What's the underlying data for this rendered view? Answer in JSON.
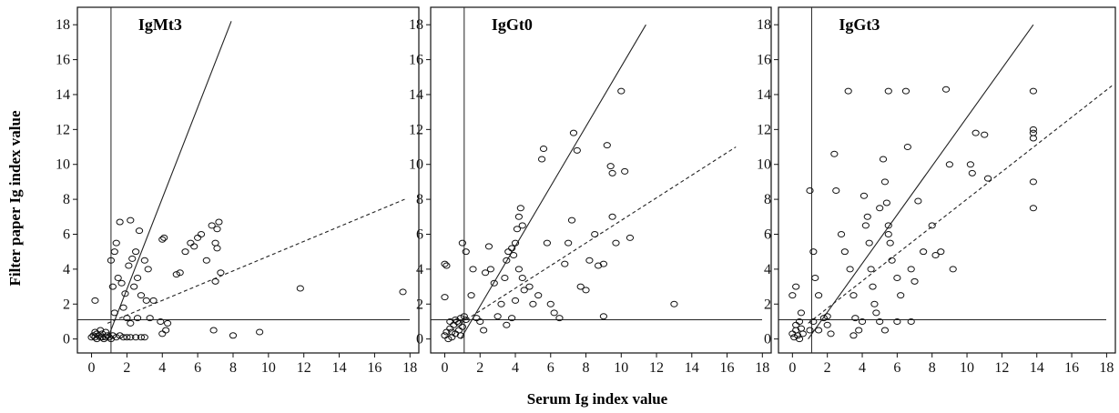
{
  "axis_titles": {
    "x": "Serum Ig index value",
    "y": "Filter paper Ig index value"
  },
  "chart_data": [
    {
      "type": "scatter",
      "title": "IgMt3",
      "xlim": [
        -0.8,
        18.5
      ],
      "ylim": [
        -0.8,
        19
      ],
      "xticks": [
        0,
        2,
        4,
        6,
        8,
        10,
        12,
        14,
        16,
        18
      ],
      "yticks": [
        0,
        2,
        4,
        6,
        8,
        10,
        12,
        14,
        16,
        18
      ],
      "cutoff_x": 1.1,
      "cutoff_y": 1.1,
      "fit_solid": [
        [
          0.9,
          0
        ],
        [
          7.9,
          18.2
        ]
      ],
      "fit_dashed": [
        [
          0.9,
          0.9
        ],
        [
          17.7,
          8
        ]
      ],
      "points": [
        [
          0,
          0.1
        ],
        [
          0.1,
          0.2
        ],
        [
          0.2,
          0.1
        ],
        [
          0.3,
          0
        ],
        [
          0.4,
          0.2
        ],
        [
          0.5,
          0.1
        ],
        [
          0.6,
          0.3
        ],
        [
          0.7,
          0
        ],
        [
          0.8,
          0.1
        ],
        [
          0.9,
          0.2
        ],
        [
          1,
          0.1
        ],
        [
          1.1,
          0
        ],
        [
          0.2,
          0.4
        ],
        [
          0.5,
          0.5
        ],
        [
          0.3,
          0.3
        ],
        [
          0.6,
          0.1
        ],
        [
          0.8,
          0.4
        ],
        [
          1.2,
          0.2
        ],
        [
          1.4,
          0.1
        ],
        [
          1.6,
          0.2
        ],
        [
          1.8,
          0.1
        ],
        [
          2,
          0.1
        ],
        [
          2.2,
          0.1
        ],
        [
          2.5,
          0.1
        ],
        [
          2.8,
          0.1
        ],
        [
          3,
          0.1
        ],
        [
          0.2,
          2.2
        ],
        [
          1.1,
          4.5
        ],
        [
          1.3,
          5
        ],
        [
          1.4,
          5.5
        ],
        [
          1.6,
          6.7
        ],
        [
          1.5,
          3.5
        ],
        [
          1.7,
          3.2
        ],
        [
          1.9,
          2.6
        ],
        [
          2.1,
          4.2
        ],
        [
          2.3,
          4.6
        ],
        [
          2.2,
          6.8
        ],
        [
          2.5,
          5
        ],
        [
          2.7,
          6.2
        ],
        [
          2.4,
          3
        ],
        [
          2.6,
          3.5
        ],
        [
          2.8,
          2.5
        ],
        [
          1.2,
          3
        ],
        [
          1.3,
          1.5
        ],
        [
          1.8,
          1.8
        ],
        [
          2,
          1.2
        ],
        [
          2.2,
          0.9
        ],
        [
          2.6,
          1.2
        ],
        [
          3,
          4.5
        ],
        [
          3.2,
          4
        ],
        [
          3.1,
          2.2
        ],
        [
          3.5,
          2.2
        ],
        [
          3.3,
          1.2
        ],
        [
          4,
          5.7
        ],
        [
          4.1,
          5.8
        ],
        [
          4.2,
          0.5
        ],
        [
          4,
          0.3
        ],
        [
          4.3,
          0.9
        ],
        [
          3.9,
          1
        ],
        [
          4.8,
          3.7
        ],
        [
          5,
          3.8
        ],
        [
          5.3,
          5
        ],
        [
          5.6,
          5.5
        ],
        [
          5.8,
          5.3
        ],
        [
          6,
          5.8
        ],
        [
          6.2,
          6
        ],
        [
          6.5,
          4.5
        ],
        [
          6.8,
          6.5
        ],
        [
          7,
          5.5
        ],
        [
          7.1,
          5.2
        ],
        [
          7.2,
          6.7
        ],
        [
          7.1,
          6.3
        ],
        [
          7.3,
          3.8
        ],
        [
          7,
          3.3
        ],
        [
          6.9,
          0.5
        ],
        [
          8,
          0.2
        ],
        [
          9.5,
          0.4
        ],
        [
          11.8,
          2.9
        ],
        [
          17.6,
          2.7
        ]
      ]
    },
    {
      "type": "scatter",
      "title": "IgGt0",
      "xlim": [
        -0.8,
        18.5
      ],
      "ylim": [
        -0.8,
        19
      ],
      "xticks": [
        0,
        2,
        4,
        6,
        8,
        10,
        12,
        14,
        16,
        18
      ],
      "yticks": [
        0,
        2,
        4,
        6,
        8,
        10,
        12,
        14,
        16,
        18
      ],
      "cutoff_x": 1.1,
      "cutoff_y": 1.1,
      "fit_solid": [
        [
          0.9,
          0
        ],
        [
          11.4,
          18
        ]
      ],
      "fit_dashed": [
        [
          0.9,
          0.9
        ],
        [
          16.5,
          11
        ]
      ],
      "points": [
        [
          0,
          0.2
        ],
        [
          0.1,
          0.4
        ],
        [
          0.2,
          0
        ],
        [
          0.3,
          0.6
        ],
        [
          0.4,
          0.1
        ],
        [
          0.5,
          0.8
        ],
        [
          0.6,
          0.3
        ],
        [
          0.7,
          1
        ],
        [
          0.8,
          0.5
        ],
        [
          0.9,
          1.2
        ],
        [
          1,
          0.7
        ],
        [
          1.1,
          1.3
        ],
        [
          0.3,
          1
        ],
        [
          0.6,
          1.1
        ],
        [
          0.9,
          0.2
        ],
        [
          0,
          4.3
        ],
        [
          0.1,
          4.2
        ],
        [
          0,
          2.4
        ],
        [
          0.4,
          0.4
        ],
        [
          0.8,
          0.9
        ],
        [
          1.2,
          1.1
        ],
        [
          1,
          5.5
        ],
        [
          1.2,
          5
        ],
        [
          1.6,
          4
        ],
        [
          1.5,
          2.5
        ],
        [
          1.8,
          1.2
        ],
        [
          2,
          1
        ],
        [
          2.2,
          0.5
        ],
        [
          2.3,
          3.8
        ],
        [
          2.5,
          5.3
        ],
        [
          2.6,
          4
        ],
        [
          2.8,
          3.2
        ],
        [
          3,
          1.3
        ],
        [
          3.2,
          2
        ],
        [
          3.4,
          3.5
        ],
        [
          3.5,
          4.5
        ],
        [
          3.6,
          5
        ],
        [
          3.8,
          5.2
        ],
        [
          3.9,
          4.8
        ],
        [
          4,
          5.5
        ],
        [
          4.1,
          6.3
        ],
        [
          4.2,
          7
        ],
        [
          4.3,
          7.5
        ],
        [
          4.4,
          6.5
        ],
        [
          4.2,
          4
        ],
        [
          4.4,
          3.5
        ],
        [
          4.5,
          2.8
        ],
        [
          3.8,
          1.2
        ],
        [
          3.5,
          0.8
        ],
        [
          4,
          2.2
        ],
        [
          4.8,
          3
        ],
        [
          5,
          2
        ],
        [
          5.3,
          2.5
        ],
        [
          5.5,
          10.3
        ],
        [
          5.6,
          10.9
        ],
        [
          5.8,
          5.5
        ],
        [
          6,
          2
        ],
        [
          6.2,
          1.5
        ],
        [
          6.5,
          1.2
        ],
        [
          6.8,
          4.3
        ],
        [
          7,
          5.5
        ],
        [
          7.2,
          6.8
        ],
        [
          7.3,
          11.8
        ],
        [
          7.5,
          10.8
        ],
        [
          7.7,
          3
        ],
        [
          8,
          2.8
        ],
        [
          8.2,
          4.5
        ],
        [
          8.5,
          6
        ],
        [
          8.7,
          4.2
        ],
        [
          9,
          4.3
        ],
        [
          9.2,
          11.1
        ],
        [
          9.4,
          9.9
        ],
        [
          9.5,
          9.5
        ],
        [
          9.5,
          7
        ],
        [
          9.7,
          5.5
        ],
        [
          10,
          14.2
        ],
        [
          10.2,
          9.6
        ],
        [
          10.5,
          5.8
        ],
        [
          9,
          1.3
        ],
        [
          13,
          2
        ]
      ]
    },
    {
      "type": "scatter",
      "title": "IgGt3",
      "xlim": [
        -0.8,
        18.5
      ],
      "ylim": [
        -0.8,
        19
      ],
      "xticks": [
        0,
        2,
        4,
        6,
        8,
        10,
        12,
        14,
        16,
        18
      ],
      "yticks": [
        0,
        2,
        4,
        6,
        8,
        10,
        12,
        14,
        16,
        18
      ],
      "cutoff_x": 1.1,
      "cutoff_y": 1.1,
      "fit_solid": [
        [
          0.9,
          0
        ],
        [
          13.8,
          18
        ]
      ],
      "fit_dashed": [
        [
          0.9,
          0.9
        ],
        [
          18.3,
          14.5
        ]
      ],
      "points": [
        [
          0,
          0.3
        ],
        [
          0.1,
          0.1
        ],
        [
          0.2,
          0.5
        ],
        [
          0.3,
          0.2
        ],
        [
          0.4,
          0
        ],
        [
          0.5,
          0.6
        ],
        [
          0.6,
          0.3
        ],
        [
          0.2,
          0.8
        ],
        [
          0.4,
          1
        ],
        [
          0,
          2.5
        ],
        [
          0.2,
          3
        ],
        [
          0.5,
          1.5
        ],
        [
          1,
          0.5
        ],
        [
          1.2,
          1
        ],
        [
          1.5,
          0.5
        ],
        [
          1.8,
          1.2
        ],
        [
          2,
          0.8
        ],
        [
          2.2,
          0.3
        ],
        [
          1,
          8.5
        ],
        [
          1.2,
          5
        ],
        [
          1.3,
          3.5
        ],
        [
          1.5,
          2.5
        ],
        [
          2.4,
          10.6
        ],
        [
          2.5,
          8.5
        ],
        [
          2.8,
          6
        ],
        [
          3,
          5
        ],
        [
          3.2,
          14.2
        ],
        [
          3.3,
          4
        ],
        [
          3.5,
          2.5
        ],
        [
          3.6,
          1.2
        ],
        [
          3.8,
          0.5
        ],
        [
          4,
          1
        ],
        [
          4.1,
          8.2
        ],
        [
          4.2,
          6.5
        ],
        [
          4.3,
          7
        ],
        [
          4.4,
          5.5
        ],
        [
          4.5,
          4
        ],
        [
          4.6,
          3
        ],
        [
          4.7,
          2
        ],
        [
          4.8,
          1.5
        ],
        [
          5,
          7.5
        ],
        [
          5.2,
          10.3
        ],
        [
          5.3,
          9
        ],
        [
          5.4,
          7.8
        ],
        [
          5.5,
          6.5
        ],
        [
          5.5,
          6
        ],
        [
          5.6,
          5.5
        ],
        [
          5.7,
          4.5
        ],
        [
          5.5,
          14.2
        ],
        [
          6,
          3.5
        ],
        [
          6.2,
          2.5
        ],
        [
          6.5,
          14.2
        ],
        [
          6.6,
          11
        ],
        [
          6.8,
          4
        ],
        [
          7,
          3.3
        ],
        [
          7.2,
          7.9
        ],
        [
          7.5,
          5
        ],
        [
          8,
          6.5
        ],
        [
          8.2,
          4.8
        ],
        [
          8.5,
          5
        ],
        [
          8.8,
          14.3
        ],
        [
          9,
          10
        ],
        [
          9.2,
          4
        ],
        [
          10.2,
          10
        ],
        [
          10.5,
          11.8
        ],
        [
          10.3,
          9.5
        ],
        [
          11,
          11.7
        ],
        [
          11.2,
          9.2
        ],
        [
          13.8,
          14.2
        ],
        [
          13.8,
          12
        ],
        [
          13.8,
          11.8
        ],
        [
          13.8,
          11.5
        ],
        [
          13.8,
          9
        ],
        [
          13.8,
          7.5
        ],
        [
          3.5,
          0.2
        ],
        [
          5,
          1
        ],
        [
          5.3,
          0.5
        ],
        [
          6,
          1
        ],
        [
          6.8,
          1
        ],
        [
          2,
          1.3
        ]
      ]
    }
  ]
}
